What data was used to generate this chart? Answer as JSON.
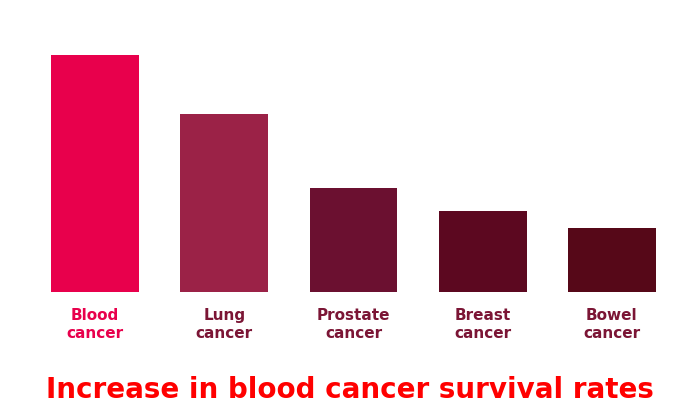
{
  "categories": [
    "Blood\ncancer",
    "Lung\ncancer",
    "Prostate\ncancer",
    "Breast\ncancer",
    "Bowel\ncancer"
  ],
  "values": [
    100,
    75,
    44,
    34,
    27
  ],
  "bar_colors": [
    "#E8004C",
    "#9B2247",
    "#6B1030",
    "#5C0820",
    "#560818"
  ],
  "label_colors": [
    "#E8004C",
    "#7B1535",
    "#7B1535",
    "#7B1535",
    "#7B1535"
  ],
  "title": "Increase in blood cancer survival rates",
  "title_color": "#ff0000",
  "title_fontsize": 20,
  "label_fontsize": 11,
  "background_color": "#ffffff",
  "bar_width": 0.68,
  "ylim": [
    0,
    118
  ]
}
